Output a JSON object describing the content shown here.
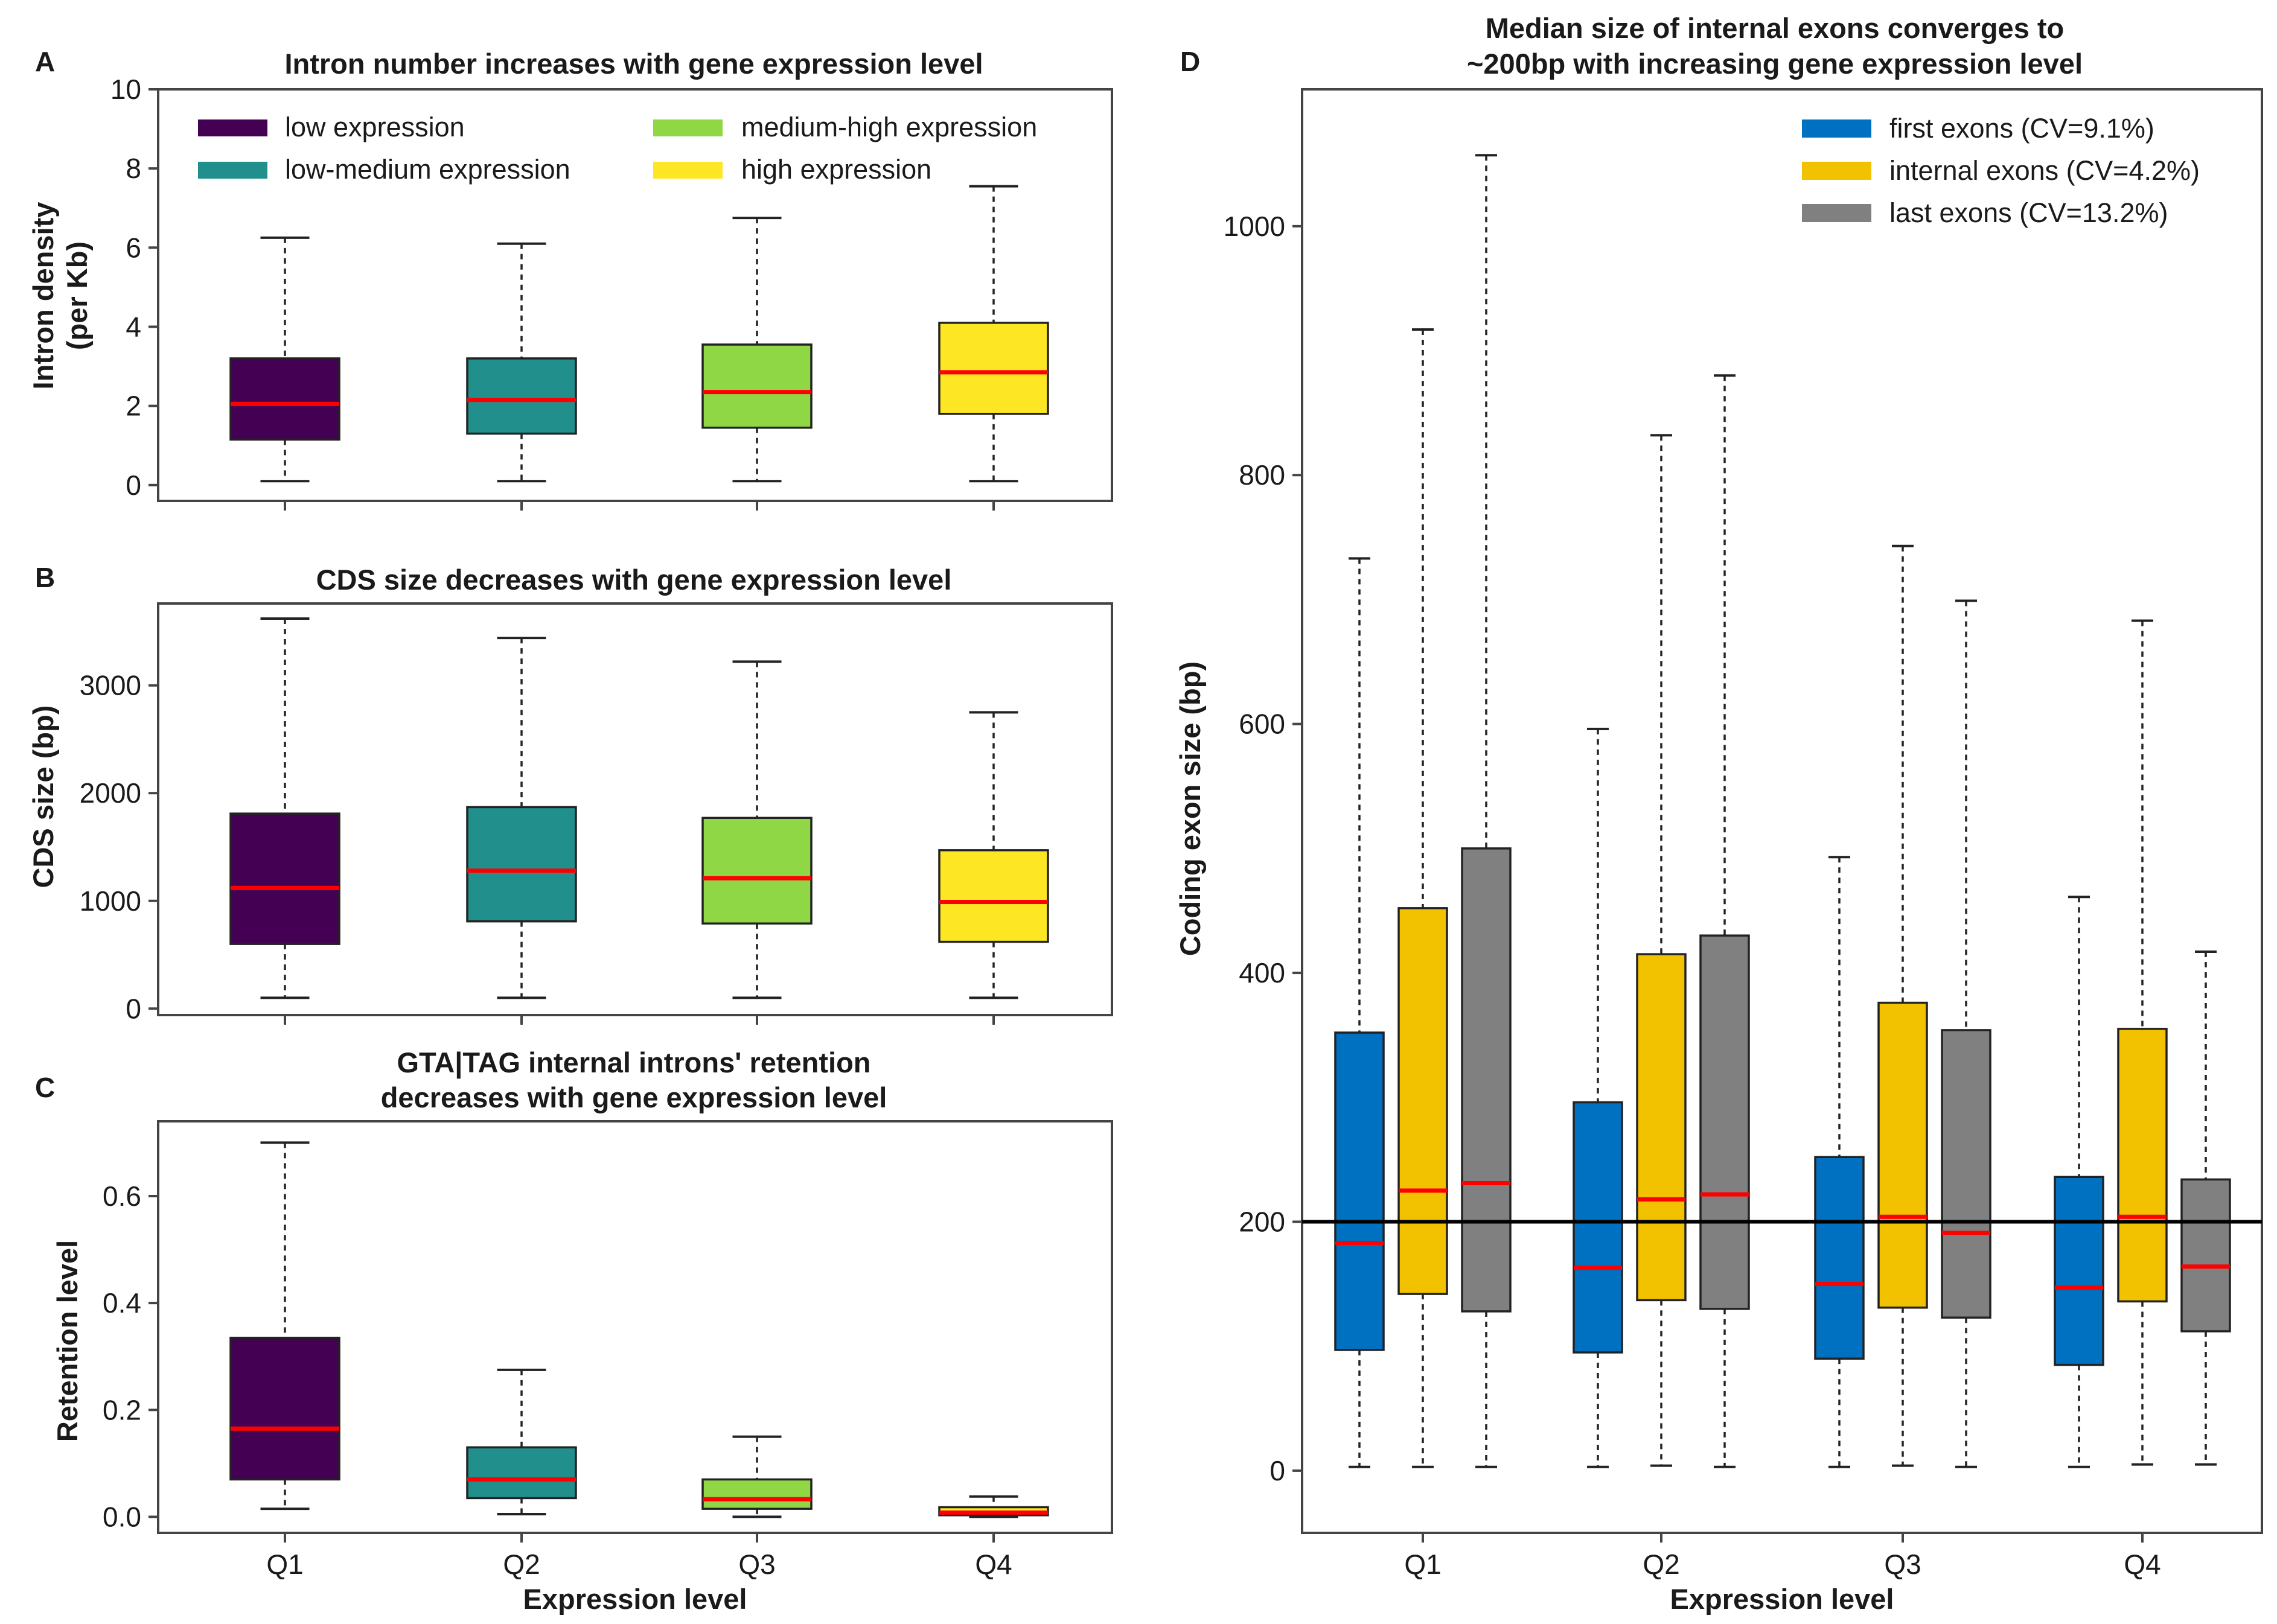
{
  "colors": {
    "low": "#440154",
    "low_medium": "#21908d",
    "medium_high": "#8fd744",
    "high": "#fde725",
    "first": "#0070c0",
    "internal": "#f2c200",
    "last": "#808080",
    "median": "#ff0000"
  },
  "chart_data": [
    {
      "panel": "A",
      "type": "box",
      "title": "Intron number increases with gene expression level",
      "ylabel": [
        "Intron density",
        "(per Kb)"
      ],
      "xlabel": "",
      "ylim": [
        -0.4,
        10
      ],
      "yticks": [
        0,
        2,
        4,
        6,
        8,
        10
      ],
      "categories": [
        "Q1",
        "Q2",
        "Q3",
        "Q4"
      ],
      "legend": [
        {
          "label": "low expression",
          "color": "#440154"
        },
        {
          "label": "low-medium expression",
          "color": "#21908d"
        },
        {
          "label": "medium-high expression",
          "color": "#8fd744"
        },
        {
          "label": "high expression",
          "color": "#fde725"
        }
      ],
      "boxes": [
        {
          "category": "Q1",
          "color": "#440154",
          "min": 0.1,
          "q1": 1.15,
          "median": 2.05,
          "q3": 3.2,
          "max": 6.25
        },
        {
          "category": "Q2",
          "color": "#21908d",
          "min": 0.1,
          "q1": 1.3,
          "median": 2.15,
          "q3": 3.2,
          "max": 6.1
        },
        {
          "category": "Q3",
          "color": "#8fd744",
          "min": 0.1,
          "q1": 1.45,
          "median": 2.35,
          "q3": 3.55,
          "max": 6.75
        },
        {
          "category": "Q4",
          "color": "#fde725",
          "min": 0.1,
          "q1": 1.8,
          "median": 2.85,
          "q3": 4.1,
          "max": 7.55
        }
      ]
    },
    {
      "panel": "B",
      "type": "box",
      "title": "CDS size decreases with gene expression level",
      "ylabel": [
        "CDS size (bp)"
      ],
      "xlabel": "",
      "ylim": [
        -60,
        3760
      ],
      "yticks": [
        0,
        1000,
        2000,
        3000
      ],
      "categories": [
        "Q1",
        "Q2",
        "Q3",
        "Q4"
      ],
      "boxes": [
        {
          "category": "Q1",
          "color": "#440154",
          "min": 100,
          "q1": 600,
          "median": 1120,
          "q3": 1810,
          "max": 3620
        },
        {
          "category": "Q2",
          "color": "#21908d",
          "min": 100,
          "q1": 810,
          "median": 1280,
          "q3": 1870,
          "max": 3440
        },
        {
          "category": "Q3",
          "color": "#8fd744",
          "min": 100,
          "q1": 790,
          "median": 1210,
          "q3": 1770,
          "max": 3220
        },
        {
          "category": "Q4",
          "color": "#fde725",
          "min": 100,
          "q1": 620,
          "median": 990,
          "q3": 1470,
          "max": 2750
        }
      ]
    },
    {
      "panel": "C",
      "type": "box",
      "title": [
        "GTA|TAG internal introns' retention",
        "decreases with gene expression level"
      ],
      "ylabel": [
        "Retention level"
      ],
      "xlabel": "Expression level",
      "ylim": [
        -0.03,
        0.74
      ],
      "yticks": [
        0.0,
        0.2,
        0.4,
        0.6
      ],
      "ytick_labels": [
        "0.0",
        "0.2",
        "0.4",
        "0.6"
      ],
      "categories": [
        "Q1",
        "Q2",
        "Q3",
        "Q4"
      ],
      "boxes": [
        {
          "category": "Q1",
          "color": "#440154",
          "min": 0.015,
          "q1": 0.07,
          "median": 0.165,
          "q3": 0.335,
          "max": 0.7
        },
        {
          "category": "Q2",
          "color": "#21908d",
          "min": 0.005,
          "q1": 0.035,
          "median": 0.07,
          "q3": 0.13,
          "max": 0.275
        },
        {
          "category": "Q3",
          "color": "#8fd744",
          "min": 0.0,
          "q1": 0.015,
          "median": 0.033,
          "q3": 0.07,
          "max": 0.15
        },
        {
          "category": "Q4",
          "color": "#fde725",
          "min": 0.0,
          "q1": 0.003,
          "median": 0.008,
          "q3": 0.018,
          "max": 0.038
        }
      ]
    },
    {
      "panel": "D",
      "type": "box",
      "title": [
        "Median size of internal exons converges to",
        "~200bp with increasing gene expression level"
      ],
      "ylabel": [
        "Coding exon size (bp)"
      ],
      "xlabel": "Expression level",
      "ylim": [
        -50,
        1110
      ],
      "yticks": [
        0,
        200,
        400,
        600,
        800,
        1000
      ],
      "reference_line": 200,
      "categories": [
        "Q1",
        "Q2",
        "Q3",
        "Q4"
      ],
      "legend": [
        {
          "label": "first exons (CV=9.1%)",
          "color": "#0070c0"
        },
        {
          "label": "internal exons (CV=4.2%)",
          "color": "#f2c200"
        },
        {
          "label": "last exons (CV=13.2%)",
          "color": "#808080"
        }
      ],
      "groups": [
        {
          "category": "Q1",
          "boxes": [
            {
              "series": "first exons",
              "color": "#0070c0",
              "min": 3,
              "q1": 97,
              "median": 183,
              "q3": 352,
              "max": 733
            },
            {
              "series": "internal exons",
              "color": "#f2c200",
              "min": 3,
              "q1": 142,
              "median": 225,
              "q3": 452,
              "max": 917
            },
            {
              "series": "last exons",
              "color": "#808080",
              "min": 3,
              "q1": 128,
              "median": 231,
              "q3": 500,
              "max": 1057
            }
          ]
        },
        {
          "category": "Q2",
          "boxes": [
            {
              "series": "first exons",
              "color": "#0070c0",
              "min": 3,
              "q1": 95,
              "median": 163,
              "q3": 296,
              "max": 596
            },
            {
              "series": "internal exons",
              "color": "#f2c200",
              "min": 4,
              "q1": 137,
              "median": 218,
              "q3": 415,
              "max": 832
            },
            {
              "series": "last exons",
              "color": "#808080",
              "min": 3,
              "q1": 130,
              "median": 222,
              "q3": 430,
              "max": 880
            }
          ]
        },
        {
          "category": "Q3",
          "boxes": [
            {
              "series": "first exons",
              "color": "#0070c0",
              "min": 3,
              "q1": 90,
              "median": 150,
              "q3": 252,
              "max": 493
            },
            {
              "series": "internal exons",
              "color": "#f2c200",
              "min": 4,
              "q1": 131,
              "median": 204,
              "q3": 376,
              "max": 743
            },
            {
              "series": "last exons",
              "color": "#808080",
              "min": 3,
              "q1": 123,
              "median": 191,
              "q3": 354,
              "max": 699
            }
          ]
        },
        {
          "category": "Q4",
          "boxes": [
            {
              "series": "first exons",
              "color": "#0070c0",
              "min": 3,
              "q1": 85,
              "median": 147,
              "q3": 236,
              "max": 461
            },
            {
              "series": "internal exons",
              "color": "#f2c200",
              "min": 5,
              "q1": 136,
              "median": 204,
              "q3": 355,
              "max": 683
            },
            {
              "series": "last exons",
              "color": "#808080",
              "min": 5,
              "q1": 112,
              "median": 164,
              "q3": 234,
              "max": 417
            }
          ]
        }
      ]
    }
  ]
}
